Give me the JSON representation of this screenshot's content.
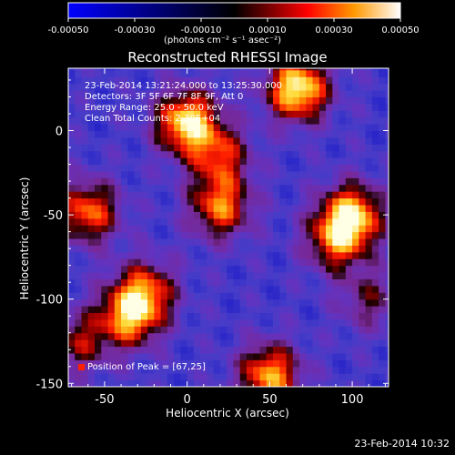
{
  "colorbar": {
    "ticks": [
      "-0.00050",
      "-0.00030",
      "-0.00010",
      "0.00010",
      "0.00030",
      "0.00050"
    ],
    "unit_label": "(photons cm⁻² s⁻¹ asec⁻²)"
  },
  "chart_data": {
    "type": "heatmap",
    "title": "Reconstructed RHESSI Image",
    "xlabel": "Heliocentric X (arcsec)",
    "ylabel": "Heliocentric Y (arcsec)",
    "xlim": [
      -72,
      122
    ],
    "ylim": [
      -152,
      37
    ],
    "xticks": [
      -50,
      0,
      50,
      100
    ],
    "yticks": [
      0,
      -50,
      -100,
      -150
    ],
    "colorbar_range": [
      -0.0005,
      0.0005
    ],
    "annotations": [
      "23-Feb-2014 13:21:24.000 to 13:25:30.000",
      "Detectors: 3F 5F 6F 7F 8F 9F, Att 0",
      "Energy Range: 25.0 - 50.0 keV",
      "Clean    Total Counts: 2.30E+04"
    ],
    "peak_label": "Position of Peak = [67,25]",
    "peak": [
      67,
      25
    ],
    "hotspots": [
      {
        "x": 67,
        "y": 25,
        "level": 1.0
      },
      {
        "x": 0,
        "y": 5,
        "level": 0.95
      },
      {
        "x": 20,
        "y": -45,
        "level": 0.7
      },
      {
        "x": 100,
        "y": -50,
        "level": 0.85
      },
      {
        "x": 90,
        "y": -65,
        "level": 0.6
      },
      {
        "x": -60,
        "y": -48,
        "level": 0.7
      },
      {
        "x": -35,
        "y": -110,
        "level": 0.75
      },
      {
        "x": -25,
        "y": -95,
        "level": 0.6
      },
      {
        "x": 50,
        "y": -145,
        "level": 0.8
      },
      {
        "x": 20,
        "y": -15,
        "level": 0.55
      },
      {
        "x": -65,
        "y": -125,
        "level": 0.45
      },
      {
        "x": 110,
        "y": -100,
        "level": 0.35
      }
    ]
  },
  "footer": {
    "timestamp": "23-Feb-2014 10:32"
  }
}
